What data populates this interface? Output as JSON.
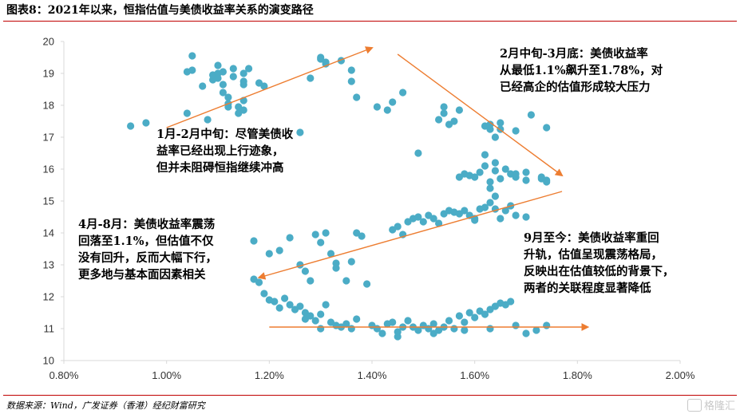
{
  "header": {
    "title": "图表8：2021年以来，恒指估值与美债收益率关系的演变路径"
  },
  "footer": {
    "source": "数据来源：Wind，广发证券（香港）经纪财富研究",
    "watermark": "格隆汇"
  },
  "annotations": {
    "a1": [
      "1月-2月中旬：尽管美债收",
      "益率已经出现上行迹象，",
      "但并未阻碍恒指继续冲高"
    ],
    "a2": [
      "2月中旬-3月底：美债收益率",
      "从最低1.1%飙升至1.78%，对",
      "已经高企的估值形成较大压力"
    ],
    "a3": [
      "4月-8月：美债收益率震荡",
      "回落至1.1%，但估值不仅",
      "没有回升，反而大幅下行，",
      "更多地与基本面因素相关"
    ],
    "a4": [
      "9月至今：美债收益率重回",
      "升轨，估值呈现震荡格局，",
      "反映出在估值较低的背景下，",
      "两者的关联程度显著降低"
    ]
  },
  "colors": {
    "dot": "#4bacc6",
    "arrow": "#ed7d31",
    "axis": "#d9d9d9",
    "rule": "#c00000"
  },
  "chart_data": {
    "type": "scatter",
    "xlim": [
      0.8,
      2.0
    ],
    "ylim": [
      10,
      20
    ],
    "xticks": [
      "0.80%",
      "1.00%",
      "1.20%",
      "1.40%",
      "1.60%",
      "1.80%",
      "2.00%"
    ],
    "yticks": [
      "10",
      "11",
      "12",
      "13",
      "14",
      "15",
      "16",
      "17",
      "18",
      "19",
      "20"
    ],
    "grid": false,
    "points": [
      [
        0.93,
        17.35
      ],
      [
        0.96,
        17.45
      ],
      [
        1.04,
        17.75
      ],
      [
        1.04,
        19.05
      ],
      [
        1.05,
        19.1
      ],
      [
        1.05,
        19.55
      ],
      [
        1.07,
        18.6
      ],
      [
        1.08,
        17.55
      ],
      [
        1.09,
        18.8
      ],
      [
        1.09,
        18.95
      ],
      [
        1.1,
        19.0
      ],
      [
        1.1,
        18.85
      ],
      [
        1.1,
        19.25
      ],
      [
        1.11,
        19.05
      ],
      [
        1.11,
        18.65
      ],
      [
        1.11,
        18.4
      ],
      [
        1.12,
        18.05
      ],
      [
        1.12,
        17.95
      ],
      [
        1.12,
        18.25
      ],
      [
        1.13,
        19.15
      ],
      [
        1.13,
        18.9
      ],
      [
        1.14,
        17.75
      ],
      [
        1.14,
        17.95
      ],
      [
        1.15,
        18.65
      ],
      [
        1.15,
        18.75
      ],
      [
        1.15,
        19.0
      ],
      [
        1.15,
        18.15
      ],
      [
        1.15,
        17.85
      ],
      [
        1.16,
        19.15
      ],
      [
        1.18,
        18.7
      ],
      [
        1.19,
        18.6
      ],
      [
        1.26,
        17.15
      ],
      [
        1.28,
        18.85
      ],
      [
        1.3,
        19.45
      ],
      [
        1.3,
        19.5
      ],
      [
        1.31,
        19.3
      ],
      [
        1.31,
        19.35
      ],
      [
        1.34,
        19.4
      ],
      [
        1.36,
        19.1
      ],
      [
        1.36,
        18.75
      ],
      [
        1.37,
        18.25
      ],
      [
        1.41,
        17.95
      ],
      [
        1.43,
        17.85
      ],
      [
        1.44,
        18.1
      ],
      [
        1.46,
        18.4
      ],
      [
        1.49,
        16.5
      ],
      [
        1.53,
        17.55
      ],
      [
        1.54,
        17.95
      ],
      [
        1.54,
        17.75
      ],
      [
        1.55,
        17.4
      ],
      [
        1.56,
        17.5
      ],
      [
        1.57,
        17.85
      ],
      [
        1.62,
        17.35
      ],
      [
        1.63,
        17.4
      ],
      [
        1.63,
        17.25
      ],
      [
        1.64,
        17.0
      ],
      [
        1.65,
        17.25
      ],
      [
        1.65,
        17.45
      ],
      [
        1.68,
        17.2
      ],
      [
        1.71,
        17.7
      ],
      [
        1.74,
        17.3
      ],
      [
        1.57,
        15.75
      ],
      [
        1.58,
        15.85
      ],
      [
        1.59,
        15.8
      ],
      [
        1.6,
        15.75
      ],
      [
        1.61,
        15.9
      ],
      [
        1.62,
        16.1
      ],
      [
        1.62,
        16.45
      ],
      [
        1.63,
        15.4
      ],
      [
        1.63,
        15.6
      ],
      [
        1.64,
        16.2
      ],
      [
        1.64,
        15.95
      ],
      [
        1.65,
        15.7
      ],
      [
        1.66,
        16.0
      ],
      [
        1.67,
        15.85
      ],
      [
        1.68,
        15.85
      ],
      [
        1.68,
        15.75
      ],
      [
        1.7,
        15.65
      ],
      [
        1.7,
        15.9
      ],
      [
        1.73,
        15.7
      ],
      [
        1.73,
        15.75
      ],
      [
        1.74,
        15.65
      ],
      [
        1.74,
        15.6
      ],
      [
        1.44,
        14.1
      ],
      [
        1.45,
        14.2
      ],
      [
        1.46,
        13.95
      ],
      [
        1.47,
        14.35
      ],
      [
        1.48,
        14.45
      ],
      [
        1.49,
        14.5
      ],
      [
        1.5,
        14.35
      ],
      [
        1.51,
        14.55
      ],
      [
        1.52,
        14.45
      ],
      [
        1.53,
        14.3
      ],
      [
        1.54,
        14.6
      ],
      [
        1.55,
        14.7
      ],
      [
        1.56,
        14.65
      ],
      [
        1.57,
        14.6
      ],
      [
        1.58,
        14.7
      ],
      [
        1.59,
        14.55
      ],
      [
        1.6,
        14.4
      ],
      [
        1.61,
        14.75
      ],
      [
        1.62,
        14.8
      ],
      [
        1.63,
        14.95
      ],
      [
        1.64,
        14.75
      ],
      [
        1.65,
        14.45
      ],
      [
        1.66,
        14.7
      ],
      [
        1.67,
        14.85
      ],
      [
        1.68,
        14.55
      ],
      [
        1.7,
        14.5
      ],
      [
        1.64,
        15.15
      ],
      [
        1.6,
        14.45
      ],
      [
        1.17,
        13.75
      ],
      [
        1.2,
        13.35
      ],
      [
        1.22,
        13.45
      ],
      [
        1.24,
        13.85
      ],
      [
        1.26,
        13.0
      ],
      [
        1.27,
        12.8
      ],
      [
        1.28,
        12.5
      ],
      [
        1.29,
        13.95
      ],
      [
        1.3,
        13.7
      ],
      [
        1.31,
        14.0
      ],
      [
        1.32,
        13.35
      ],
      [
        1.33,
        13.05
      ],
      [
        1.35,
        12.5
      ],
      [
        1.36,
        13.1
      ],
      [
        1.37,
        14.0
      ],
      [
        1.38,
        13.9
      ],
      [
        1.39,
        12.4
      ],
      [
        1.33,
        12.9
      ],
      [
        1.17,
        12.55
      ],
      [
        1.18,
        12.45
      ],
      [
        1.19,
        12.1
      ],
      [
        1.2,
        11.9
      ],
      [
        1.21,
        11.85
      ],
      [
        1.22,
        11.65
      ],
      [
        1.23,
        11.95
      ],
      [
        1.24,
        11.75
      ],
      [
        1.25,
        11.6
      ],
      [
        1.26,
        11.7
      ],
      [
        1.27,
        11.5
      ],
      [
        1.27,
        11.3
      ],
      [
        1.28,
        11.4
      ],
      [
        1.29,
        11.25
      ],
      [
        1.3,
        11.0
      ],
      [
        1.3,
        11.45
      ],
      [
        1.31,
        11.75
      ],
      [
        1.32,
        11.2
      ],
      [
        1.33,
        11.1
      ],
      [
        1.34,
        11.05
      ],
      [
        1.35,
        11.15
      ],
      [
        1.36,
        11.0
      ],
      [
        1.37,
        11.3
      ],
      [
        1.4,
        11.1
      ],
      [
        1.41,
        11.0
      ],
      [
        1.42,
        10.85
      ],
      [
        1.43,
        11.15
      ],
      [
        1.44,
        11.2
      ],
      [
        1.45,
        10.9
      ],
      [
        1.46,
        11.05
      ],
      [
        1.47,
        11.25
      ],
      [
        1.48,
        11.05
      ],
      [
        1.49,
        10.95
      ],
      [
        1.5,
        11.1
      ],
      [
        1.51,
        11.0
      ],
      [
        1.52,
        11.15
      ],
      [
        1.53,
        10.95
      ],
      [
        1.54,
        11.05
      ],
      [
        1.55,
        11.25
      ],
      [
        1.56,
        11.0
      ],
      [
        1.57,
        11.4
      ],
      [
        1.58,
        11.2
      ],
      [
        1.59,
        11.5
      ],
      [
        1.6,
        11.35
      ],
      [
        1.61,
        11.55
      ],
      [
        1.62,
        11.45
      ],
      [
        1.63,
        11.6
      ],
      [
        1.64,
        11.7
      ],
      [
        1.65,
        11.8
      ],
      [
        1.66,
        11.75
      ],
      [
        1.67,
        11.85
      ],
      [
        1.68,
        11.1
      ],
      [
        1.7,
        10.85
      ],
      [
        1.72,
        10.95
      ],
      [
        1.74,
        11.1
      ],
      [
        1.63,
        11.0
      ],
      [
        1.58,
        10.95
      ],
      [
        1.45,
        10.75
      ],
      [
        1.52,
        10.85
      ]
    ],
    "arrows": [
      {
        "from": [
          1.0,
          17.3
        ],
        "to": [
          1.4,
          19.8
        ]
      },
      {
        "from": [
          1.45,
          19.6
        ],
        "to": [
          1.77,
          15.8
        ]
      },
      {
        "from": [
          1.77,
          15.3
        ],
        "to": [
          1.18,
          12.6
        ]
      },
      {
        "from": [
          1.2,
          11.05
        ],
        "to": [
          1.82,
          11.05
        ]
      }
    ]
  }
}
